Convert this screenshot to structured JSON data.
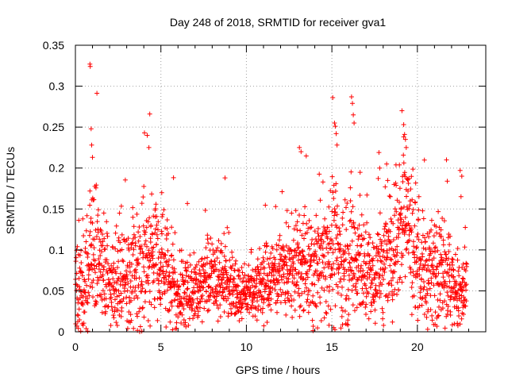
{
  "chart_data": {
    "type": "scatter",
    "title": "Day 248 of 2018, SRMTID for receiver gva1",
    "xlabel": "GPS time / hours",
    "ylabel": "SRMTID / TECUs",
    "xlim": [
      0,
      24
    ],
    "ylim": [
      0,
      0.35
    ],
    "x_ticks": [
      0,
      5,
      10,
      15,
      20
    ],
    "x_tick_labels": [
      "0",
      "5",
      "10",
      "15",
      "20"
    ],
    "y_ticks": [
      0,
      0.05,
      0.1,
      0.15,
      0.2,
      0.25,
      0.3,
      0.35
    ],
    "y_tick_labels": [
      "0",
      "0.05",
      "0.1",
      "0.15",
      "0.2",
      "0.25",
      "0.3",
      "0.35"
    ],
    "grid": true,
    "marker": "+",
    "color": "#ff0000",
    "series_name": "gva1",
    "x_step_hours": 0.01,
    "data_extent_hours": [
      0,
      22.9
    ],
    "envelope": [
      [
        0,
        0.05,
        0.04
      ],
      [
        0.5,
        0.05,
        0.04
      ],
      [
        0.8,
        0.08,
        0.05
      ],
      [
        1.1,
        0.11,
        0.06
      ],
      [
        1.5,
        0.08,
        0.05
      ],
      [
        2,
        0.05,
        0.03
      ],
      [
        2.5,
        0.06,
        0.04
      ],
      [
        3,
        0.06,
        0.04
      ],
      [
        3.5,
        0.07,
        0.04
      ],
      [
        4,
        0.08,
        0.05
      ],
      [
        4.5,
        0.09,
        0.05
      ],
      [
        5,
        0.08,
        0.05
      ],
      [
        5.5,
        0.06,
        0.04
      ],
      [
        6,
        0.04,
        0.03
      ],
      [
        6.5,
        0.05,
        0.03
      ],
      [
        7,
        0.05,
        0.03
      ],
      [
        7.5,
        0.06,
        0.03
      ],
      [
        8,
        0.07,
        0.03
      ],
      [
        8.5,
        0.06,
        0.03
      ],
      [
        9,
        0.06,
        0.03
      ],
      [
        9.5,
        0.05,
        0.025
      ],
      [
        10,
        0.045,
        0.02
      ],
      [
        10.5,
        0.055,
        0.025
      ],
      [
        11,
        0.06,
        0.03
      ],
      [
        11.5,
        0.07,
        0.03
      ],
      [
        12,
        0.07,
        0.03
      ],
      [
        12.5,
        0.07,
        0.035
      ],
      [
        13,
        0.08,
        0.04
      ],
      [
        13.5,
        0.07,
        0.04
      ],
      [
        14,
        0.07,
        0.04
      ],
      [
        14.5,
        0.09,
        0.05
      ],
      [
        15,
        0.11,
        0.06
      ],
      [
        15.5,
        0.08,
        0.05
      ],
      [
        16,
        0.1,
        0.06
      ],
      [
        16.5,
        0.09,
        0.05
      ],
      [
        17,
        0.07,
        0.04
      ],
      [
        17.5,
        0.06,
        0.04
      ],
      [
        18,
        0.08,
        0.05
      ],
      [
        18.5,
        0.09,
        0.05
      ],
      [
        19,
        0.13,
        0.06
      ],
      [
        19.3,
        0.16,
        0.06
      ],
      [
        19.8,
        0.09,
        0.05
      ],
      [
        20.5,
        0.07,
        0.04
      ],
      [
        21,
        0.07,
        0.04
      ],
      [
        21.5,
        0.08,
        0.04
      ],
      [
        22,
        0.06,
        0.04
      ],
      [
        22.5,
        0.04,
        0.035
      ],
      [
        22.9,
        0.05,
        0.035
      ]
    ],
    "peaks": [
      [
        0.85,
        0.327
      ],
      [
        0.87,
        0.324
      ],
      [
        0.92,
        0.248
      ],
      [
        0.95,
        0.228
      ],
      [
        1.0,
        0.213
      ],
      [
        4.2,
        0.24
      ],
      [
        4.35,
        0.266
      ],
      [
        4.3,
        0.225
      ],
      [
        5.05,
        0.17
      ],
      [
        8.75,
        0.188
      ],
      [
        13.1,
        0.225
      ],
      [
        13.2,
        0.22
      ],
      [
        15.05,
        0.286
      ],
      [
        15.15,
        0.255
      ],
      [
        15.2,
        0.251
      ],
      [
        15.25,
        0.242
      ],
      [
        15.3,
        0.228
      ],
      [
        16.15,
        0.287
      ],
      [
        16.2,
        0.279
      ],
      [
        16.25,
        0.265
      ],
      [
        16.3,
        0.255
      ],
      [
        17.75,
        0.219
      ],
      [
        17.8,
        0.2
      ],
      [
        18.2,
        0.205
      ],
      [
        19.1,
        0.27
      ],
      [
        19.2,
        0.253
      ],
      [
        19.25,
        0.241
      ],
      [
        19.3,
        0.235
      ],
      [
        19.35,
        0.225
      ],
      [
        21.7,
        0.21
      ],
      [
        21.75,
        0.184
      ],
      [
        22.5,
        0.197
      ],
      [
        22.6,
        0.19
      ],
      [
        22.55,
        0.165
      ]
    ]
  }
}
